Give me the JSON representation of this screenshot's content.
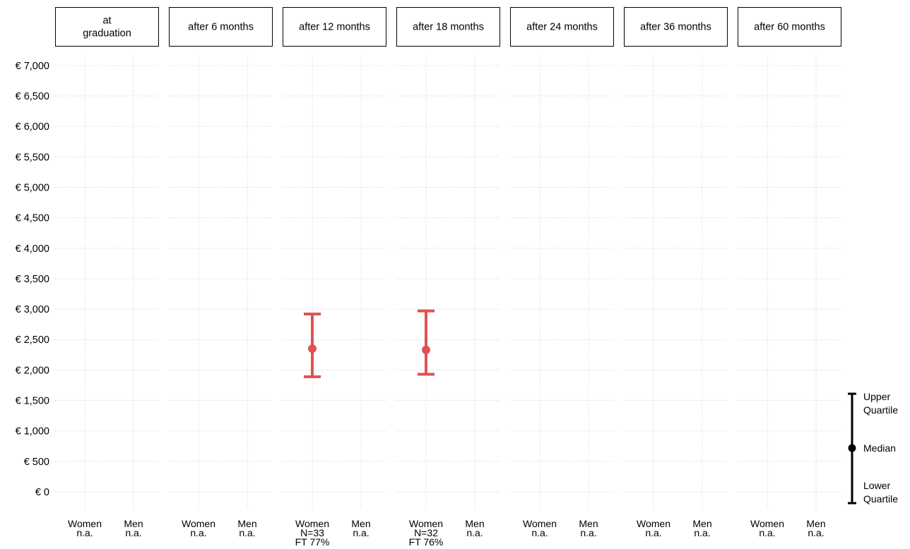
{
  "chart_data": {
    "type": "errorbar",
    "title": "",
    "ylabel": "",
    "ylim": [
      -200,
      7150
    ],
    "y_ticks": [
      0,
      500,
      1000,
      1500,
      2000,
      2500,
      3000,
      3500,
      4000,
      4500,
      5000,
      5500,
      6000,
      6500,
      7000
    ],
    "y_tick_labels": [
      "€ 0",
      "€ 500",
      "€ 1,000",
      "€ 1,500",
      "€ 2,000",
      "€ 2,500",
      "€ 3,000",
      "€ 3,500",
      "€ 4,000",
      "€ 4,500",
      "€ 5,000",
      "€ 5,500",
      "€ 6,000",
      "€ 6,500",
      "€ 7,000"
    ],
    "grid": true,
    "series_color": "#e05252",
    "panels": [
      {
        "label": "at\ngraduation",
        "groups": [
          {
            "name": "Women",
            "info": [
              "n.a."
            ],
            "median": null,
            "lower": null,
            "upper": null
          },
          {
            "name": "Men",
            "info": [
              "n.a."
            ],
            "median": null,
            "lower": null,
            "upper": null
          }
        ]
      },
      {
        "label": "after 6 months",
        "groups": [
          {
            "name": "Women",
            "info": [
              "n.a."
            ],
            "median": null,
            "lower": null,
            "upper": null
          },
          {
            "name": "Men",
            "info": [
              "n.a."
            ],
            "median": null,
            "lower": null,
            "upper": null
          }
        ]
      },
      {
        "label": "after 12 months",
        "groups": [
          {
            "name": "Women",
            "info": [
              "N=33",
              "FT 77%"
            ],
            "median": 2350,
            "lower": 1890,
            "upper": 2920
          },
          {
            "name": "Men",
            "info": [
              "n.a."
            ],
            "median": null,
            "lower": null,
            "upper": null
          }
        ]
      },
      {
        "label": "after 18 months",
        "groups": [
          {
            "name": "Women",
            "info": [
              "N=32",
              "FT 76%"
            ],
            "median": 2330,
            "lower": 1930,
            "upper": 2970
          },
          {
            "name": "Men",
            "info": [
              "n.a."
            ],
            "median": null,
            "lower": null,
            "upper": null
          }
        ]
      },
      {
        "label": "after 24 months",
        "groups": [
          {
            "name": "Women",
            "info": [
              "n.a."
            ],
            "median": null,
            "lower": null,
            "upper": null
          },
          {
            "name": "Men",
            "info": [
              "n.a."
            ],
            "median": null,
            "lower": null,
            "upper": null
          }
        ]
      },
      {
        "label": "after 36 months",
        "groups": [
          {
            "name": "Women",
            "info": [
              "n.a."
            ],
            "median": null,
            "lower": null,
            "upper": null
          },
          {
            "name": "Men",
            "info": [
              "n.a."
            ],
            "median": null,
            "lower": null,
            "upper": null
          }
        ]
      },
      {
        "label": "after 60 months",
        "groups": [
          {
            "name": "Women",
            "info": [
              "n.a."
            ],
            "median": null,
            "lower": null,
            "upper": null
          },
          {
            "name": "Men",
            "info": [
              "n.a."
            ],
            "median": null,
            "lower": null,
            "upper": null
          }
        ]
      }
    ],
    "legend": {
      "placement": "right",
      "upper_label": "Upper\nQuartile",
      "median_label": "Median",
      "lower_label": "Lower\nQuartile"
    }
  }
}
